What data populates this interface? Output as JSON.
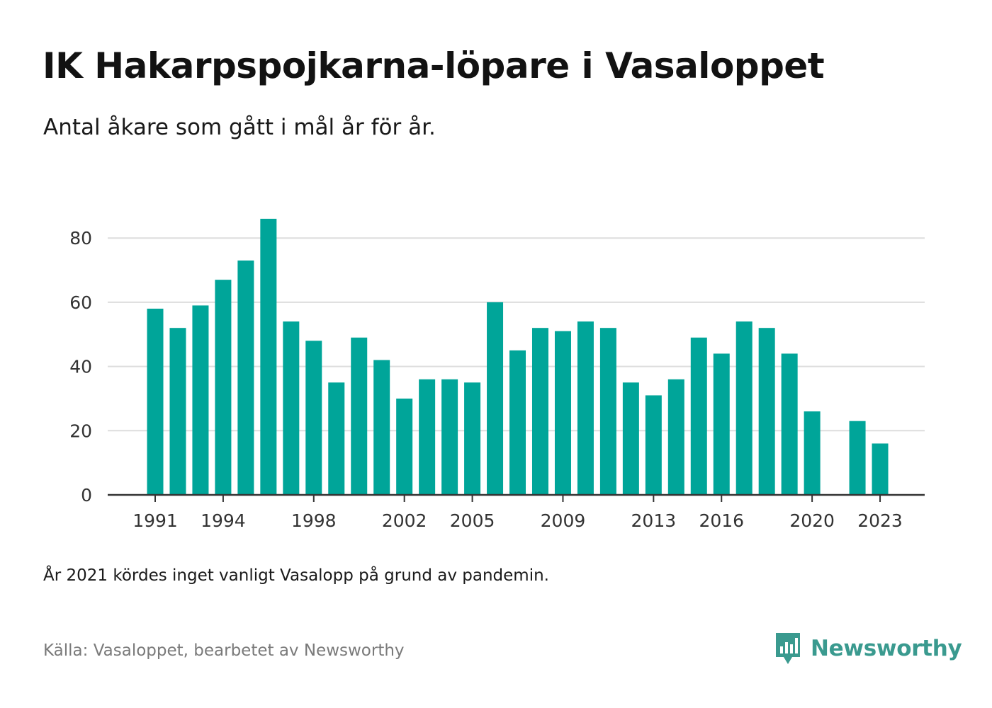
{
  "header": {
    "title": "IK Hakarpspojkarna-löpare i Vasaloppet",
    "subtitle": "Antal åkare som gått i mål år för år."
  },
  "footer": {
    "note": "År 2021 kördes inget vanligt Vasalopp på grund av pandemin.",
    "source": "Källa: Vasaloppet, bearbetet av Newsworthy",
    "brand_name": "Newsworthy",
    "brand_icon": "newsworthy-logo-icon"
  },
  "colors": {
    "bar": "#00a599",
    "grid": "#dddddd",
    "axis": "#333333",
    "brand": "#3a9a8f"
  },
  "chart_data": {
    "type": "bar",
    "title": "IK Hakarpspojkarna-löpare i Vasaloppet",
    "subtitle": "Antal åkare som gått i mål år för år.",
    "xlabel": "",
    "ylabel": "",
    "ylim": [
      0,
      90
    ],
    "yticks": [
      0,
      20,
      40,
      60,
      80
    ],
    "xtick_labels": [
      "1991",
      "1994",
      "1998",
      "2002",
      "2005",
      "2009",
      "2013",
      "2016",
      "2020",
      "2023"
    ],
    "grid": true,
    "legend": "none",
    "categories": [
      1991,
      1992,
      1993,
      1994,
      1995,
      1996,
      1997,
      1998,
      1999,
      2000,
      2001,
      2002,
      2003,
      2004,
      2005,
      2006,
      2007,
      2008,
      2009,
      2010,
      2011,
      2012,
      2013,
      2014,
      2015,
      2016,
      2017,
      2018,
      2019,
      2020,
      2021,
      2022,
      2023
    ],
    "values": [
      58,
      52,
      59,
      67,
      73,
      86,
      54,
      48,
      35,
      49,
      42,
      30,
      36,
      36,
      35,
      60,
      45,
      52,
      51,
      54,
      52,
      35,
      31,
      36,
      49,
      44,
      54,
      52,
      44,
      26,
      null,
      23,
      16
    ]
  }
}
